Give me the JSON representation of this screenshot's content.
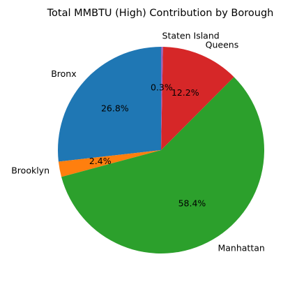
{
  "chart_data": {
    "type": "pie",
    "title": "Total MMBTU (High) Contribution by Borough",
    "labels": [
      "Bronx",
      "Brooklyn",
      "Manhattan",
      "Queens",
      "Staten Island"
    ],
    "values": [
      26.8,
      2.4,
      58.4,
      12.2,
      0.3
    ],
    "value_labels": [
      "26.8%",
      "2.4%",
      "58.4%",
      "12.2%",
      "0.3%"
    ],
    "colors": [
      "#1f77b4",
      "#ff7f0e",
      "#2ca02c",
      "#d62728",
      "#9467bd"
    ],
    "start_angle_deg": 90,
    "direction": "counterclockwise"
  }
}
